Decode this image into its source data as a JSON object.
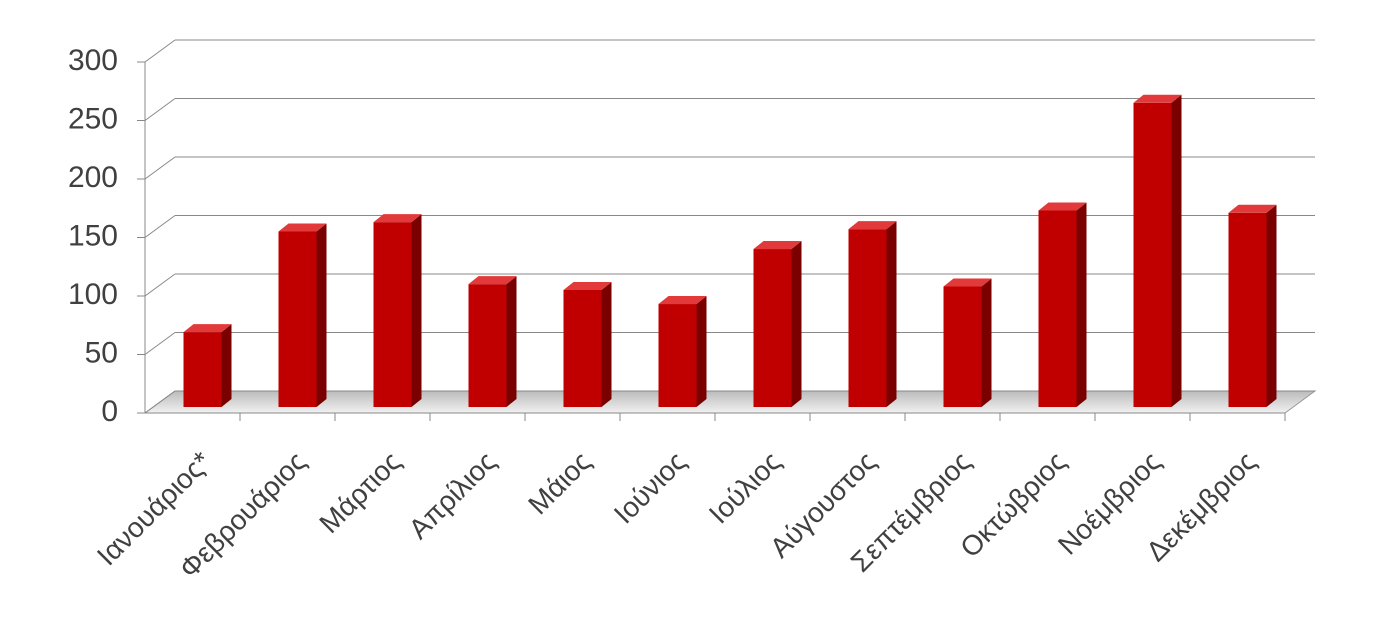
{
  "chart_data": {
    "type": "bar",
    "categories": [
      "Ιανουάριος*",
      "Φεβρουάριος",
      "Μάρτιος",
      "Απρίλιος",
      "Μάιος",
      "Ιούνιος",
      "Ιούλιος",
      "Αύγουστος",
      "Σεπτέμβριος",
      "Οκτώβριος",
      "Νοέμβριος",
      "Δεκέμβριος"
    ],
    "values": [
      64,
      150,
      158,
      105,
      100,
      88,
      135,
      152,
      103,
      168,
      260,
      166
    ],
    "color": "#c00000",
    "ylim": [
      0,
      300
    ],
    "yticks": [
      0,
      50,
      100,
      150,
      200,
      250,
      300
    ],
    "grid": true
  }
}
